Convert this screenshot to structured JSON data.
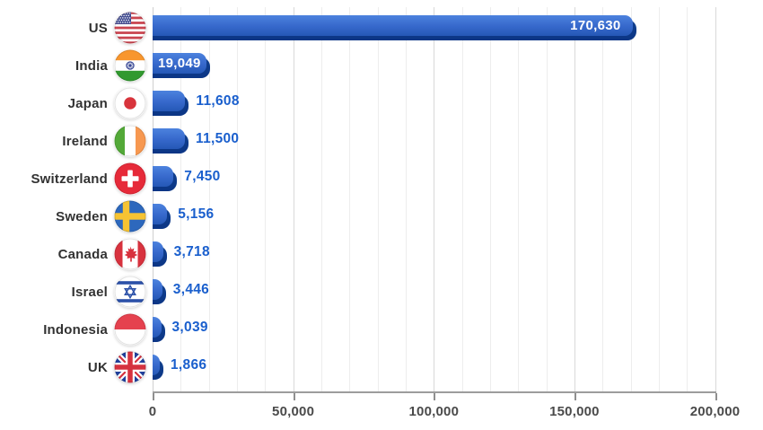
{
  "chart_data": {
    "type": "bar",
    "orientation": "horizontal",
    "title": "",
    "xlabel": "",
    "ylabel": "",
    "categories": [
      "US",
      "India",
      "Japan",
      "Ireland",
      "Switzerland",
      "Sweden",
      "Canada",
      "Israel",
      "Indonesia",
      "UK"
    ],
    "values": [
      170630,
      19049,
      11608,
      11500,
      7450,
      5156,
      3718,
      3446,
      3039,
      1866
    ],
    "value_labels": [
      "170,630",
      "19,049",
      "11,608",
      "11,500",
      "7,450",
      "5,156",
      "3,718",
      "3,446",
      "3,039",
      "1,866"
    ],
    "value_label_positions": [
      "inside-right",
      "inside-center",
      "outside",
      "outside",
      "outside",
      "outside",
      "outside",
      "outside",
      "outside",
      "outside"
    ],
    "flag_icons": [
      "us-flag-icon",
      "india-flag-icon",
      "japan-flag-icon",
      "ireland-flag-icon",
      "switzerland-flag-icon",
      "sweden-flag-icon",
      "canada-flag-icon",
      "israel-flag-icon",
      "indonesia-flag-icon",
      "uk-flag-icon"
    ],
    "xlim": [
      0,
      200000
    ],
    "x_major_ticks": {
      "values": [
        0,
        50000,
        100000,
        150000,
        200000
      ],
      "labels": [
        "0",
        "50,000",
        "100,000",
        "150,000",
        "200,000"
      ]
    },
    "x_minor_step": 10000,
    "grid": "vertical minor + major gridlines",
    "legend": "none"
  },
  "colors": {
    "bar_face_top": "#4c82de",
    "bar_face_bottom": "#2558b6",
    "bar_shadow": "#0e3b8a",
    "value_text_outside": "#1a5fcd",
    "value_text_inside": "#ffffff",
    "country_label": "#323232",
    "axis_label": "#4a4a4a",
    "gridline_minor": "#ededed",
    "gridline_major": "#d9d9d9",
    "axis_line": "#9d9d9d",
    "background": "#ffffff"
  }
}
